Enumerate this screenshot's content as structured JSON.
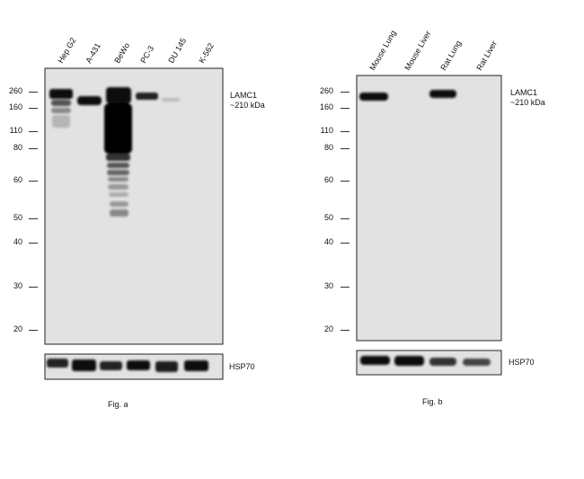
{
  "panel_a": {
    "lanes": [
      "Hep G2",
      "A-431",
      "BeWo",
      "PC-3",
      "DU 145",
      "K-562"
    ],
    "mw_markers": [
      "260",
      "160",
      "110",
      "80",
      "60",
      "50",
      "40",
      "30",
      "20"
    ],
    "target_label": "LAMC1",
    "target_size": "~210 kDa",
    "control_label": "HSP70",
    "caption": "Fig. a"
  },
  "panel_b": {
    "lanes": [
      "Mouse Lung",
      "Mouse Liver",
      "Rat Lung",
      "Rat Liver"
    ],
    "mw_markers": [
      "260",
      "160",
      "110",
      "80",
      "60",
      "50",
      "40",
      "30",
      "20"
    ],
    "target_label": "LAMC1",
    "target_size": "~210 kDa",
    "control_label": "HSP70",
    "caption": "Fig. b"
  }
}
